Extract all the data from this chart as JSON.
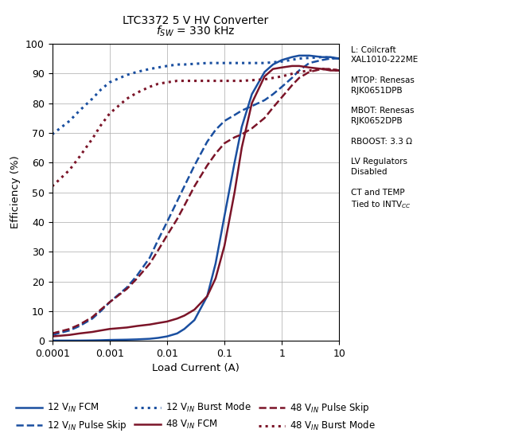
{
  "title_line1": "LTC3372 5 V HV Converter",
  "title_line2": "$f_{SW}$ = 330 kHz",
  "xlabel": "Load Current (A)",
  "ylabel": "Efficiency (%)",
  "ylim": [
    0,
    100
  ],
  "yticks": [
    0,
    10,
    20,
    30,
    40,
    50,
    60,
    70,
    80,
    90,
    100
  ],
  "xticks": [
    0.0001,
    0.001,
    0.01,
    0.1,
    1,
    10
  ],
  "color_blue": "#1A4FA0",
  "color_red": "#7B1428",
  "bg_color": "#FFFFFF",
  "series": {
    "12V_FCM": {
      "x": [
        0.0001,
        0.0002,
        0.0003,
        0.0005,
        0.0007,
        0.001,
        0.002,
        0.003,
        0.005,
        0.007,
        0.01,
        0.015,
        0.02,
        0.03,
        0.05,
        0.07,
        0.1,
        0.15,
        0.2,
        0.3,
        0.5,
        0.7,
        1,
        1.5,
        2,
        3,
        5,
        7,
        10
      ],
      "y": [
        0.1,
        0.1,
        0.1,
        0.15,
        0.2,
        0.3,
        0.4,
        0.5,
        0.7,
        1.0,
        1.5,
        2.5,
        4.0,
        7.0,
        15.0,
        26.0,
        42.0,
        60.0,
        72.0,
        83.0,
        90.5,
        93.0,
        94.5,
        95.5,
        96.0,
        96.0,
        95.5,
        95.5,
        95.0
      ],
      "color": "#1A4FA0",
      "linestyle": "solid",
      "linewidth": 1.8
    },
    "12V_PulseSkip": {
      "x": [
        0.0001,
        0.0002,
        0.0003,
        0.0005,
        0.0007,
        0.001,
        0.002,
        0.003,
        0.005,
        0.007,
        0.01,
        0.015,
        0.02,
        0.03,
        0.05,
        0.07,
        0.1,
        0.15,
        0.2,
        0.3,
        0.5,
        0.7,
        1,
        1.5,
        2,
        3,
        5,
        7,
        10
      ],
      "y": [
        2.0,
        3.5,
        5.0,
        7.5,
        10.0,
        13.0,
        18.0,
        22.0,
        28.0,
        34.0,
        40.0,
        47.0,
        52.0,
        59.0,
        67.0,
        71.0,
        74.0,
        76.0,
        77.5,
        79.0,
        81.0,
        83.0,
        85.5,
        88.5,
        91.0,
        93.5,
        94.5,
        95.0,
        95.0
      ],
      "color": "#1A4FA0",
      "linestyle": "dashed",
      "linewidth": 1.8
    },
    "12V_Burst": {
      "x": [
        0.0001,
        0.0002,
        0.0003,
        0.0005,
        0.0007,
        0.001,
        0.002,
        0.003,
        0.005,
        0.007,
        0.01,
        0.015,
        0.02,
        0.05,
        0.1,
        0.2,
        0.5,
        1,
        2,
        5,
        10
      ],
      "y": [
        69.5,
        74.0,
        77.5,
        81.5,
        84.5,
        87.0,
        89.5,
        90.5,
        91.5,
        92.0,
        92.5,
        93.0,
        93.0,
        93.5,
        93.5,
        93.5,
        93.5,
        94.0,
        95.0,
        95.5,
        95.0
      ],
      "color": "#1A4FA0",
      "linestyle": "dotted",
      "linewidth": 2.2
    },
    "48V_FCM": {
      "x": [
        0.0001,
        0.0002,
        0.0003,
        0.0005,
        0.0007,
        0.001,
        0.002,
        0.003,
        0.005,
        0.007,
        0.01,
        0.015,
        0.02,
        0.03,
        0.05,
        0.07,
        0.1,
        0.15,
        0.2,
        0.3,
        0.5,
        0.7,
        1,
        1.5,
        2,
        3,
        5,
        7,
        10
      ],
      "y": [
        1.5,
        2.0,
        2.5,
        3.0,
        3.5,
        4.0,
        4.5,
        5.0,
        5.5,
        6.0,
        6.5,
        7.5,
        8.5,
        10.5,
        15.0,
        21.0,
        32.0,
        50.0,
        65.0,
        80.0,
        89.0,
        91.5,
        92.0,
        92.5,
        92.5,
        92.0,
        91.5,
        91.0,
        91.0
      ],
      "color": "#7B1428",
      "linestyle": "solid",
      "linewidth": 1.8
    },
    "48V_PulseSkip": {
      "x": [
        0.0001,
        0.0002,
        0.0003,
        0.0005,
        0.0007,
        0.001,
        0.002,
        0.003,
        0.005,
        0.007,
        0.01,
        0.015,
        0.02,
        0.03,
        0.05,
        0.07,
        0.1,
        0.15,
        0.2,
        0.3,
        0.5,
        0.7,
        1,
        1.5,
        2,
        3,
        5,
        7,
        10
      ],
      "y": [
        2.5,
        4.0,
        5.5,
        8.0,
        10.5,
        13.0,
        17.5,
        21.0,
        26.0,
        30.5,
        35.5,
        41.0,
        45.5,
        52.0,
        59.0,
        63.0,
        66.5,
        68.5,
        69.5,
        71.5,
        75.0,
        78.5,
        82.0,
        86.0,
        88.5,
        90.5,
        91.5,
        91.5,
        91.0
      ],
      "color": "#7B1428",
      "linestyle": "dashed",
      "linewidth": 1.8
    },
    "48V_Burst": {
      "x": [
        0.0001,
        0.0002,
        0.0003,
        0.0005,
        0.0007,
        0.001,
        0.002,
        0.003,
        0.005,
        0.007,
        0.01,
        0.015,
        0.02,
        0.05,
        0.1,
        0.2,
        0.5,
        1,
        2,
        5,
        10
      ],
      "y": [
        52.0,
        57.5,
        62.0,
        68.0,
        72.5,
        76.5,
        81.5,
        83.5,
        85.5,
        86.5,
        87.0,
        87.5,
        87.5,
        87.5,
        87.5,
        87.5,
        88.0,
        89.0,
        90.5,
        91.5,
        91.0
      ],
      "color": "#7B1428",
      "linestyle": "dotted",
      "linewidth": 2.2
    }
  },
  "legend": [
    {
      "label": "12 V$_{IN}$ FCM",
      "color": "#1A4FA0",
      "linestyle": "solid",
      "linewidth": 1.8
    },
    {
      "label": "12 V$_{IN}$ Pulse Skip",
      "color": "#1A4FA0",
      "linestyle": "dashed",
      "linewidth": 1.8
    },
    {
      "label": "12 V$_{IN}$ Burst Mode",
      "color": "#1A4FA0",
      "linestyle": "dotted",
      "linewidth": 2.2
    },
    {
      "label": "48 V$_{IN}$ FCM",
      "color": "#7B1428",
      "linestyle": "solid",
      "linewidth": 1.8
    },
    {
      "label": "48 V$_{IN}$ Pulse Skip",
      "color": "#7B1428",
      "linestyle": "dashed",
      "linewidth": 1.8
    },
    {
      "label": "48 V$_{IN}$ Burst Mode",
      "color": "#7B1428",
      "linestyle": "dotted",
      "linewidth": 2.2
    }
  ]
}
